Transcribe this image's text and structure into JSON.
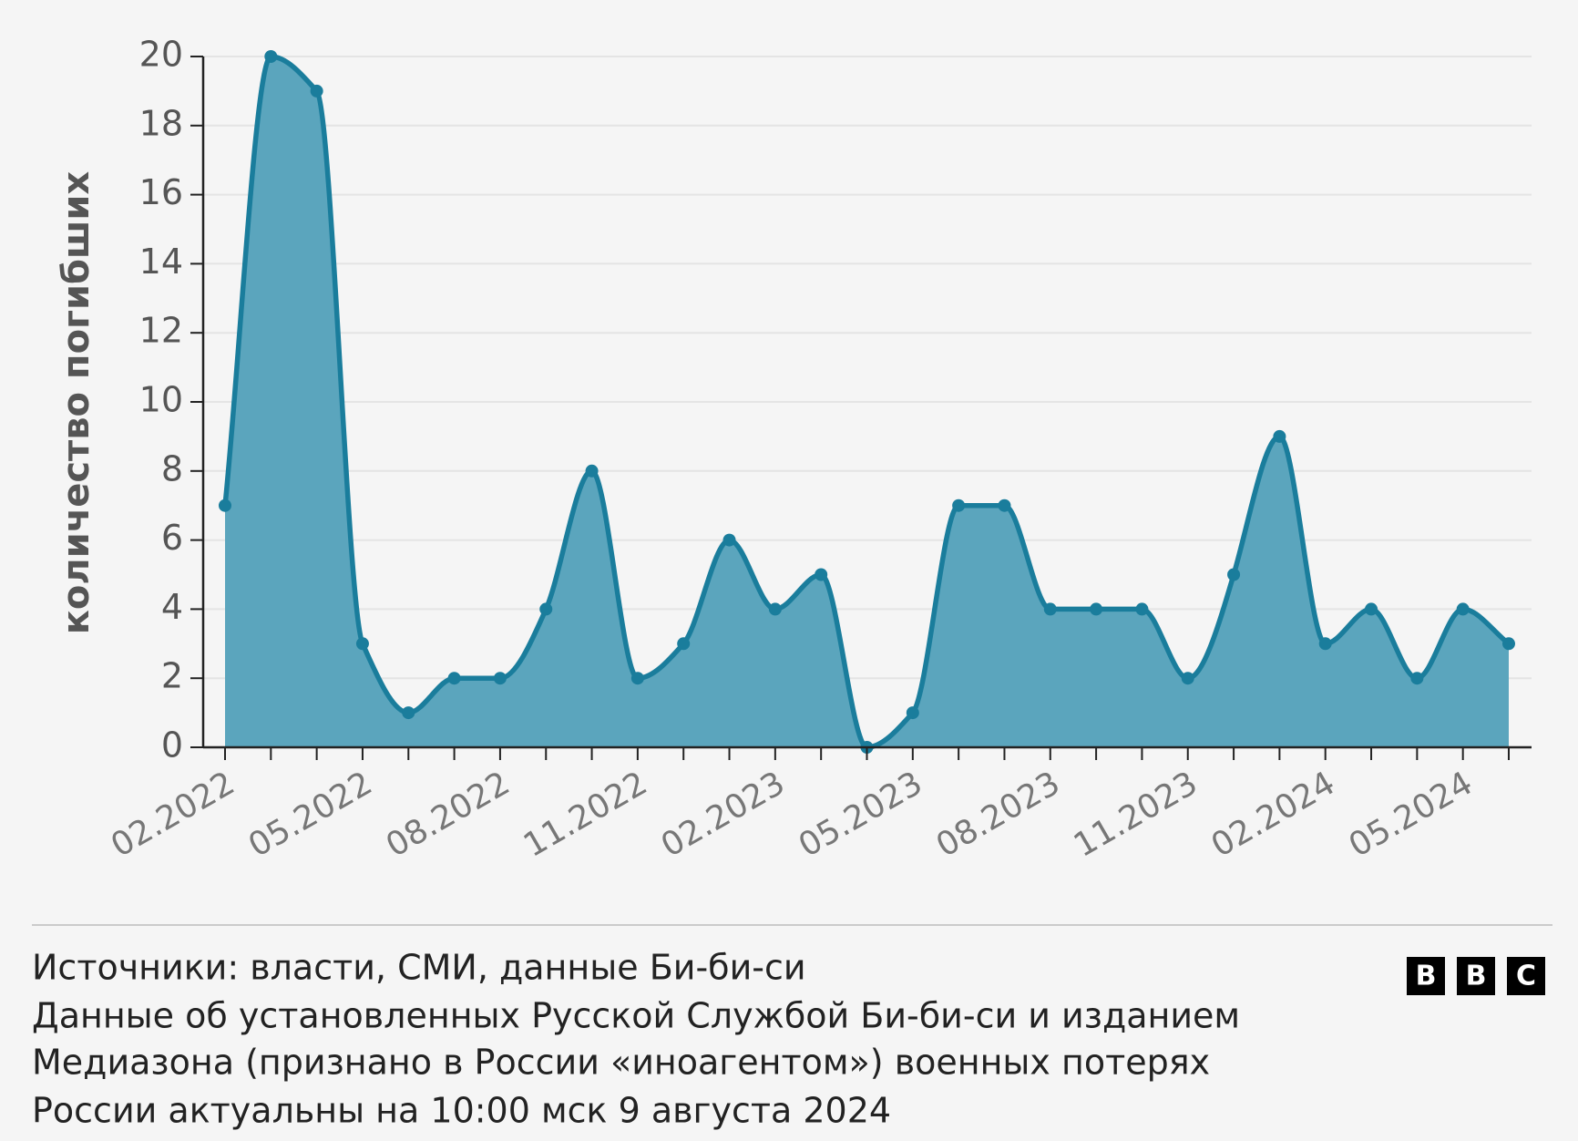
{
  "chart_data": {
    "type": "area",
    "ylabel": "количество погибших",
    "categories": [
      "02.2022",
      null,
      null,
      "05.2022",
      null,
      null,
      "08.2022",
      null,
      null,
      "11.2022",
      null,
      null,
      "02.2023",
      null,
      null,
      "05.2023",
      null,
      null,
      "08.2023",
      null,
      null,
      "11.2023",
      null,
      null,
      "02.2024",
      null,
      null,
      "05.2024",
      null
    ],
    "series": [
      {
        "color": "#1a7d9c",
        "fill": "#5ba5bd",
        "values": [
          7,
          20,
          19,
          3,
          1,
          2,
          2,
          4,
          8,
          2,
          3,
          6,
          4,
          5,
          0,
          1,
          7,
          7,
          4,
          4,
          4,
          2,
          5,
          9,
          3,
          4,
          2,
          4,
          3
        ]
      }
    ],
    "ylim": [
      0,
      20
    ],
    "yticks": [
      0,
      2,
      4,
      6,
      8,
      10,
      12,
      14,
      16,
      18,
      20
    ],
    "grid": true,
    "smooth": true
  },
  "footer": {
    "source": "Источники: власти, СМИ, данные Би-би-си",
    "note": [
      "Данные об установленных Русской Службой Би-би-си и изданием",
      "Медиазона (признано в России «иноагентом») военных потерях",
      "России актуальны на 10:00 мск 9 августа 2024"
    ],
    "logo": [
      "B",
      "B",
      "C"
    ]
  }
}
